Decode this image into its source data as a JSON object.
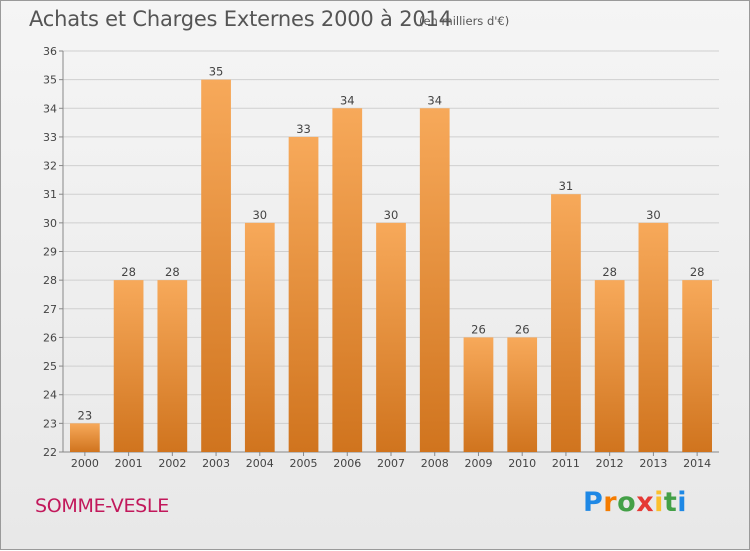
{
  "header": {
    "title": "Achats et Charges Externes 2000 à 2014",
    "subtitle": "(en milliers d'€)"
  },
  "commune": "SOMME-VESLE",
  "logo": {
    "text": "Proxiti"
  },
  "colors": {
    "bar_light": "#f7a95a",
    "bar_dark": "#d0741e",
    "grid": "#cfcfcf",
    "commune": "#c2185b"
  },
  "chart_data": {
    "type": "bar",
    "title": "Achats et Charges Externes 2000 à 2014",
    "subtitle": "(en milliers d'€)",
    "categories": [
      "2000",
      "2001",
      "2002",
      "2003",
      "2004",
      "2005",
      "2006",
      "2007",
      "2008",
      "2009",
      "2010",
      "2011",
      "2012",
      "2013",
      "2014"
    ],
    "values": [
      23,
      28,
      28,
      35,
      30,
      33,
      34,
      30,
      34,
      26,
      26,
      31,
      28,
      30,
      28
    ],
    "ylim": [
      22,
      36
    ],
    "yticks": [
      22,
      23,
      24,
      25,
      26,
      27,
      28,
      29,
      30,
      31,
      32,
      33,
      34,
      35,
      36
    ],
    "grid": true,
    "xlabel": "",
    "ylabel": ""
  }
}
